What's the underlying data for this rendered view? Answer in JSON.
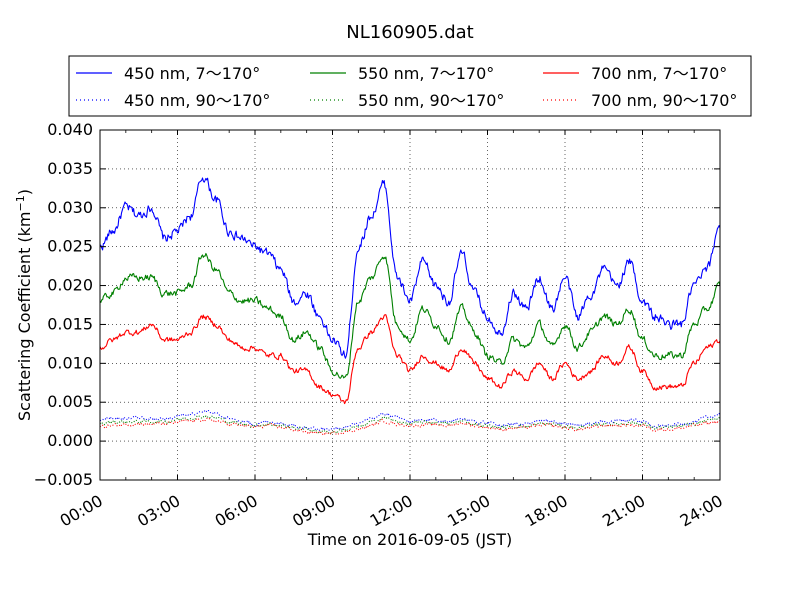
{
  "chart_data": {
    "type": "line",
    "title": "NL160905.dat",
    "xlabel": "Time on 2016-09-05 (JST)",
    "ylabel": "Scattering Coefficient (km",
    "ylabel_sup": "−1",
    "ylabel_end": ")",
    "xlim": [
      0,
      24
    ],
    "ylim": [
      -0.005,
      0.04
    ],
    "x_ticks": [
      0,
      3,
      6,
      9,
      12,
      15,
      18,
      21,
      24
    ],
    "x_tick_labels": [
      "00:00",
      "03:00",
      "06:00",
      "09:00",
      "12:00",
      "15:00",
      "18:00",
      "21:00",
      "24:00"
    ],
    "y_ticks": [
      -0.005,
      0.0,
      0.005,
      0.01,
      0.015,
      0.02,
      0.025,
      0.03,
      0.035,
      0.04
    ],
    "y_tick_labels": [
      "−0.005",
      "0.000",
      "0.005",
      "0.010",
      "0.015",
      "0.020",
      "0.025",
      "0.030",
      "0.035",
      "0.040"
    ],
    "grid": true,
    "legend_position": "top",
    "x_hours": [
      0,
      0.5,
      1,
      1.5,
      2,
      2.5,
      3,
      3.5,
      4,
      4.5,
      5,
      5.5,
      6,
      6.5,
      7,
      7.5,
      8,
      8.5,
      9,
      9.5,
      10,
      10.5,
      11,
      11.5,
      12,
      12.5,
      13,
      13.5,
      14,
      14.5,
      15,
      15.5,
      16,
      16.5,
      17,
      17.5,
      18,
      18.5,
      19,
      19.5,
      20,
      20.5,
      21,
      21.5,
      22,
      22.5,
      23,
      23.5,
      24
    ],
    "series": [
      {
        "name": "450 nm, 7～170°",
        "color": "#0000ff",
        "style": "solid",
        "noise": 0.0012,
        "values": [
          0.025,
          0.027,
          0.03,
          0.029,
          0.03,
          0.026,
          0.027,
          0.029,
          0.034,
          0.031,
          0.027,
          0.026,
          0.025,
          0.024,
          0.022,
          0.018,
          0.019,
          0.016,
          0.013,
          0.011,
          0.025,
          0.029,
          0.033,
          0.021,
          0.018,
          0.023,
          0.02,
          0.018,
          0.024,
          0.019,
          0.016,
          0.014,
          0.019,
          0.017,
          0.021,
          0.017,
          0.021,
          0.016,
          0.019,
          0.022,
          0.02,
          0.023,
          0.018,
          0.016,
          0.015,
          0.015,
          0.02,
          0.022,
          0.028
        ]
      },
      {
        "name": "450 nm, 90～170°",
        "color": "#0000ff",
        "style": "dotted",
        "noise": 0.0004,
        "values": [
          0.0027,
          0.003,
          0.003,
          0.003,
          0.003,
          0.0028,
          0.0032,
          0.0035,
          0.0038,
          0.0035,
          0.003,
          0.0025,
          0.0022,
          0.0025,
          0.0023,
          0.002,
          0.0018,
          0.0015,
          0.0015,
          0.0018,
          0.0022,
          0.0028,
          0.0035,
          0.003,
          0.0025,
          0.0028,
          0.0028,
          0.0025,
          0.003,
          0.0025,
          0.0023,
          0.002,
          0.0022,
          0.0022,
          0.0025,
          0.0025,
          0.0022,
          0.002,
          0.0022,
          0.0025,
          0.0025,
          0.0028,
          0.0025,
          0.002,
          0.002,
          0.0022,
          0.0025,
          0.003,
          0.0035
        ]
      },
      {
        "name": "550 nm, 7～170°",
        "color": "#008000",
        "style": "solid",
        "noise": 0.0009,
        "values": [
          0.018,
          0.019,
          0.021,
          0.021,
          0.021,
          0.019,
          0.019,
          0.02,
          0.024,
          0.022,
          0.019,
          0.018,
          0.018,
          0.017,
          0.016,
          0.013,
          0.014,
          0.012,
          0.009,
          0.008,
          0.018,
          0.021,
          0.024,
          0.015,
          0.013,
          0.017,
          0.015,
          0.013,
          0.017,
          0.014,
          0.011,
          0.01,
          0.013,
          0.012,
          0.015,
          0.012,
          0.015,
          0.012,
          0.014,
          0.016,
          0.015,
          0.017,
          0.013,
          0.011,
          0.011,
          0.011,
          0.015,
          0.017,
          0.02
        ]
      },
      {
        "name": "550 nm, 90～170°",
        "color": "#008000",
        "style": "dotted",
        "noise": 0.0004,
        "values": [
          0.0022,
          0.0025,
          0.0025,
          0.0025,
          0.0025,
          0.0025,
          0.0028,
          0.003,
          0.0032,
          0.003,
          0.0025,
          0.0022,
          0.002,
          0.0022,
          0.002,
          0.0017,
          0.0015,
          0.0012,
          0.0012,
          0.0015,
          0.0018,
          0.0024,
          0.003,
          0.0025,
          0.0022,
          0.0024,
          0.0024,
          0.0022,
          0.0026,
          0.0022,
          0.002,
          0.0017,
          0.0019,
          0.0019,
          0.0022,
          0.0022,
          0.0019,
          0.0017,
          0.0019,
          0.0022,
          0.0022,
          0.0024,
          0.0022,
          0.0017,
          0.0017,
          0.0019,
          0.0022,
          0.0026,
          0.003
        ]
      },
      {
        "name": "700 nm, 7～170°",
        "color": "#ff0000",
        "style": "solid",
        "noise": 0.0007,
        "values": [
          0.012,
          0.013,
          0.014,
          0.014,
          0.015,
          0.013,
          0.013,
          0.014,
          0.016,
          0.015,
          0.013,
          0.012,
          0.012,
          0.011,
          0.011,
          0.009,
          0.009,
          0.007,
          0.006,
          0.005,
          0.012,
          0.014,
          0.016,
          0.011,
          0.009,
          0.011,
          0.01,
          0.009,
          0.012,
          0.01,
          0.008,
          0.007,
          0.009,
          0.008,
          0.01,
          0.008,
          0.01,
          0.008,
          0.009,
          0.011,
          0.01,
          0.012,
          0.009,
          0.007,
          0.007,
          0.007,
          0.01,
          0.012,
          0.013
        ]
      },
      {
        "name": "700 nm, 90～170°",
        "color": "#ff0000",
        "style": "dotted",
        "noise": 0.0004,
        "values": [
          0.0018,
          0.002,
          0.0022,
          0.0022,
          0.0022,
          0.0022,
          0.0024,
          0.0026,
          0.0028,
          0.0026,
          0.0022,
          0.002,
          0.0018,
          0.002,
          0.0018,
          0.0015,
          0.0012,
          0.001,
          0.001,
          0.0012,
          0.0015,
          0.002,
          0.0026,
          0.0022,
          0.002,
          0.0021,
          0.0021,
          0.002,
          0.0023,
          0.002,
          0.0018,
          0.0015,
          0.0017,
          0.0017,
          0.002,
          0.002,
          0.0017,
          0.0015,
          0.0017,
          0.002,
          0.002,
          0.0021,
          0.002,
          0.0015,
          0.0015,
          0.0017,
          0.002,
          0.0023,
          0.0026
        ]
      }
    ]
  }
}
